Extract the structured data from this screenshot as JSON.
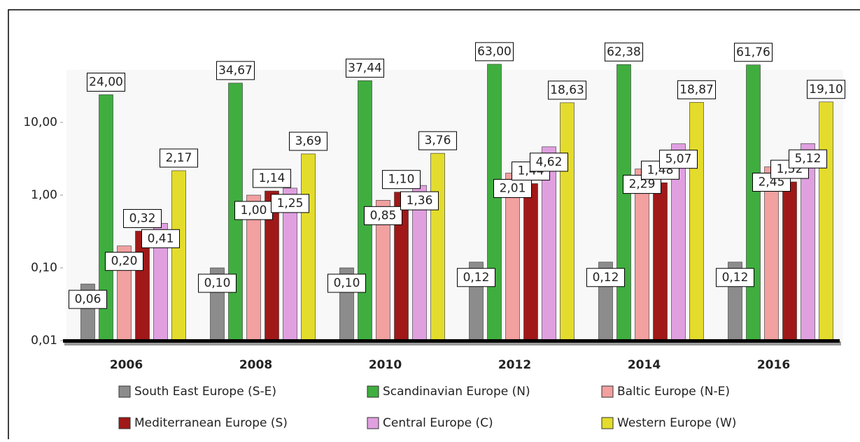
{
  "chart_data": {
    "type": "bar",
    "log_scale": true,
    "categories": [
      "2006",
      "2008",
      "2010",
      "2012",
      "2014",
      "2016"
    ],
    "series": [
      {
        "name": "South East Europe (S-E)",
        "color": "#8c8c8c",
        "values": [
          0.06,
          0.1,
          0.1,
          0.12,
          0.12,
          0.12
        ],
        "value_labels": [
          "0,06",
          "0,10",
          "0,10",
          "0,12",
          "0,12",
          "0,12"
        ]
      },
      {
        "name": "Scandinavian Europe (N)",
        "color": "#3fae3f",
        "values": [
          24.0,
          34.67,
          37.44,
          63.0,
          62.38,
          61.76
        ],
        "value_labels": [
          "24,00",
          "34,67",
          "37,44",
          "63,00",
          "62,38",
          "61,76"
        ]
      },
      {
        "name": "Baltic Europe (N-E)",
        "color": "#f2a0a0",
        "values": [
          0.2,
          1.0,
          0.85,
          2.01,
          2.29,
          2.45
        ],
        "value_labels": [
          "0,20",
          "1,00",
          "0,85",
          "2,01",
          "2,29",
          "2,45"
        ]
      },
      {
        "name": "Mediterranean Europe (S)",
        "color": "#a01818",
        "values": [
          0.32,
          1.14,
          1.1,
          1.44,
          1.48,
          1.52
        ],
        "value_labels": [
          "0,32",
          "1,14",
          "1,10",
          "1,44",
          "1,48",
          "1,52"
        ]
      },
      {
        "name": "Central Europe (C)",
        "color": "#e0a0e0",
        "values": [
          0.41,
          1.25,
          1.36,
          4.62,
          5.07,
          5.12
        ],
        "value_labels": [
          "0,41",
          "1,25",
          "1,36",
          "4,62",
          "5,07",
          "5,12"
        ]
      },
      {
        "name": "Western Europe (W)",
        "color": "#e4dc2c",
        "values": [
          2.17,
          3.69,
          3.76,
          18.63,
          18.87,
          19.1
        ],
        "value_labels": [
          "2,17",
          "3,69",
          "3,76",
          "18,63",
          "18,87",
          "19,10"
        ]
      }
    ],
    "ylim": [
      0.01,
      100
    ],
    "yticks": [
      {
        "value": 0.01,
        "label": "0,01"
      },
      {
        "value": 0.1,
        "label": "0,10"
      },
      {
        "value": 1,
        "label": "1,00"
      },
      {
        "value": 10,
        "label": "10,00"
      }
    ]
  }
}
